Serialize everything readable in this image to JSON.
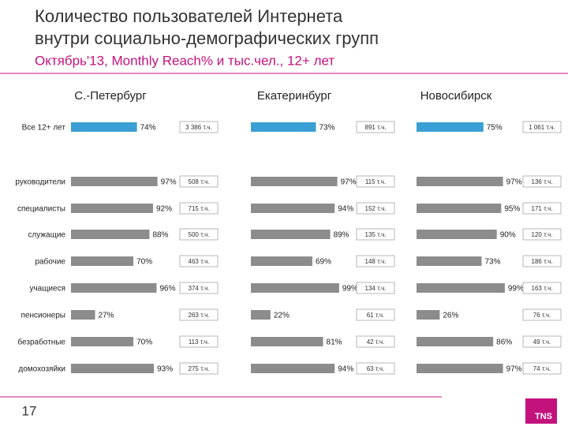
{
  "title": [
    "Количество пользователей Интернета",
    "внутри социально-демографических групп"
  ],
  "subtitle": "Октябрь'13, Monthly Reach% и тыс.чел., 12+ лет",
  "page_number": "17",
  "logo": "TNS",
  "chart_data": [
    {
      "type": "bar",
      "title": "С.-Петербург",
      "categories": [
        "Все 12+ лет",
        "руководители",
        "специалисты",
        "служащие",
        "рабочие",
        "учащиеся",
        "пенсионеры",
        "безработные",
        "домохозяйки"
      ],
      "values": [
        74,
        97,
        92,
        88,
        70,
        96,
        27,
        70,
        93
      ],
      "value_labels": [
        "74%",
        "97%",
        "92%",
        "88%",
        "70%",
        "96%",
        "27%",
        "70%",
        "93%"
      ],
      "users": [
        3386,
        508,
        715,
        500,
        463,
        374,
        263,
        113,
        275
      ],
      "users_labels": [
        "3 386 т.ч.",
        "508 т.ч.",
        "715 т.ч.",
        "500 т.ч.",
        "463 т.ч.",
        "374 т.ч.",
        "263 т.ч.",
        "113 т.ч.",
        "275 т.ч."
      ],
      "colors": [
        "#3a9fd4",
        "#8c8c8c",
        "#8c8c8c",
        "#8c8c8c",
        "#8c8c8c",
        "#8c8c8c",
        "#8c8c8c",
        "#8c8c8c",
        "#8c8c8c"
      ]
    },
    {
      "type": "bar",
      "title": "Екатеринбург",
      "values": [
        73,
        97,
        94,
        89,
        69,
        99,
        22,
        81,
        94
      ],
      "value_labels": [
        "73%",
        "97%",
        "94%",
        "89%",
        "69%",
        "99%",
        "22%",
        "81%",
        "94%"
      ],
      "users": [
        891,
        115,
        152,
        135,
        148,
        134,
        61,
        42,
        63
      ],
      "users_labels": [
        "891 т.ч.",
        "115 т.ч.",
        "152 т.ч.",
        "135 т.ч.",
        "148 т.ч.",
        "134 т.ч.",
        "61 т.ч.",
        "42 т.ч.",
        "63 т.ч."
      ],
      "colors": [
        "#3a9fd4",
        "#8c8c8c",
        "#8c8c8c",
        "#8c8c8c",
        "#8c8c8c",
        "#8c8c8c",
        "#8c8c8c",
        "#8c8c8c",
        "#8c8c8c"
      ]
    },
    {
      "type": "bar",
      "title": "Новосибирск",
      "values": [
        75,
        97,
        95,
        90,
        73,
        99,
        26,
        86,
        97
      ],
      "value_labels": [
        "75%",
        "97%",
        "95%",
        "90%",
        "73%",
        "99%",
        "26%",
        "86%",
        "97%"
      ],
      "users": [
        1061,
        136,
        171,
        120,
        186,
        163,
        76,
        49,
        74
      ],
      "users_labels": [
        "1 061 т.ч.",
        "136 т.ч.",
        "171 т.ч.",
        "120 т.ч.",
        "186 т.ч.",
        "163 т.ч.",
        "76 т.ч.",
        "49 т.ч.",
        "74 т.ч."
      ],
      "colors": [
        "#3a9fd4",
        "#8c8c8c",
        "#8c8c8c",
        "#8c8c8c",
        "#8c8c8c",
        "#8c8c8c",
        "#8c8c8c",
        "#8c8c8c",
        "#8c8c8c"
      ]
    }
  ]
}
